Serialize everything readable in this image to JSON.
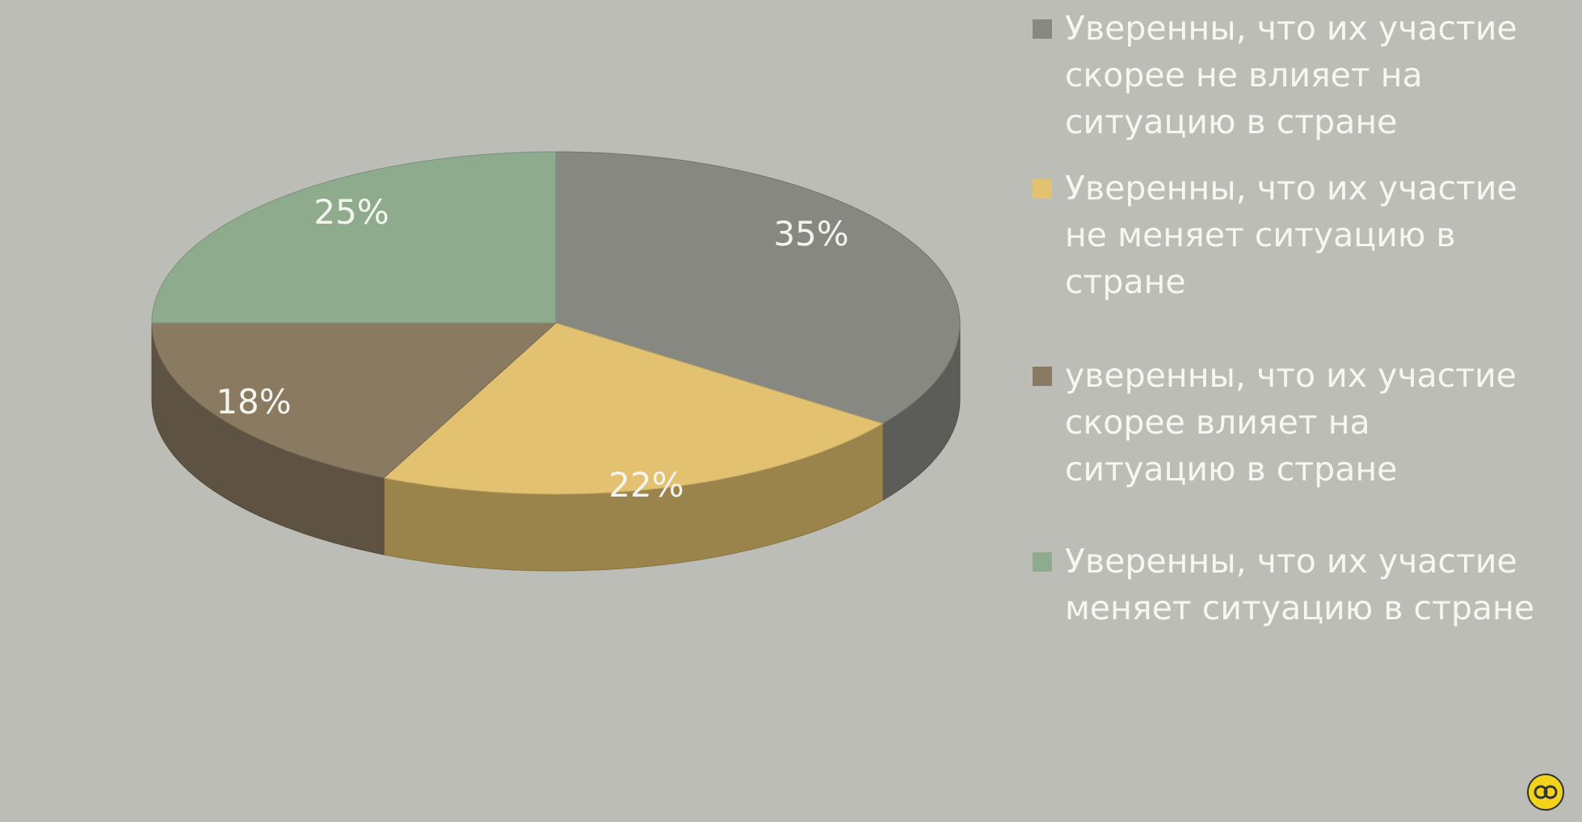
{
  "chart_data": {
    "type": "pie",
    "style": "3d",
    "title": "",
    "slices": [
      {
        "label": "Уверенны, что их участие скорее не влияет на ситуацию в стране",
        "value": 35,
        "display": "35%",
        "color": "#888882"
      },
      {
        "label": "Уверенны, что их участие не меняет ситуацию в стране",
        "value": 22,
        "display": "22%",
        "color": "#e2c270"
      },
      {
        "label": "уверенны, что их участие скорее влияет на ситуацию в стране",
        "value": 18,
        "display": "18%",
        "color": "#8a7a62"
      },
      {
        "label": "Уверенны, что их участие меняет ситуацию в стране",
        "value": 25,
        "display": "25%",
        "color": "#8fab8e"
      }
    ],
    "legend_position": "right"
  },
  "logo_icon": "infinity-circle-logo"
}
